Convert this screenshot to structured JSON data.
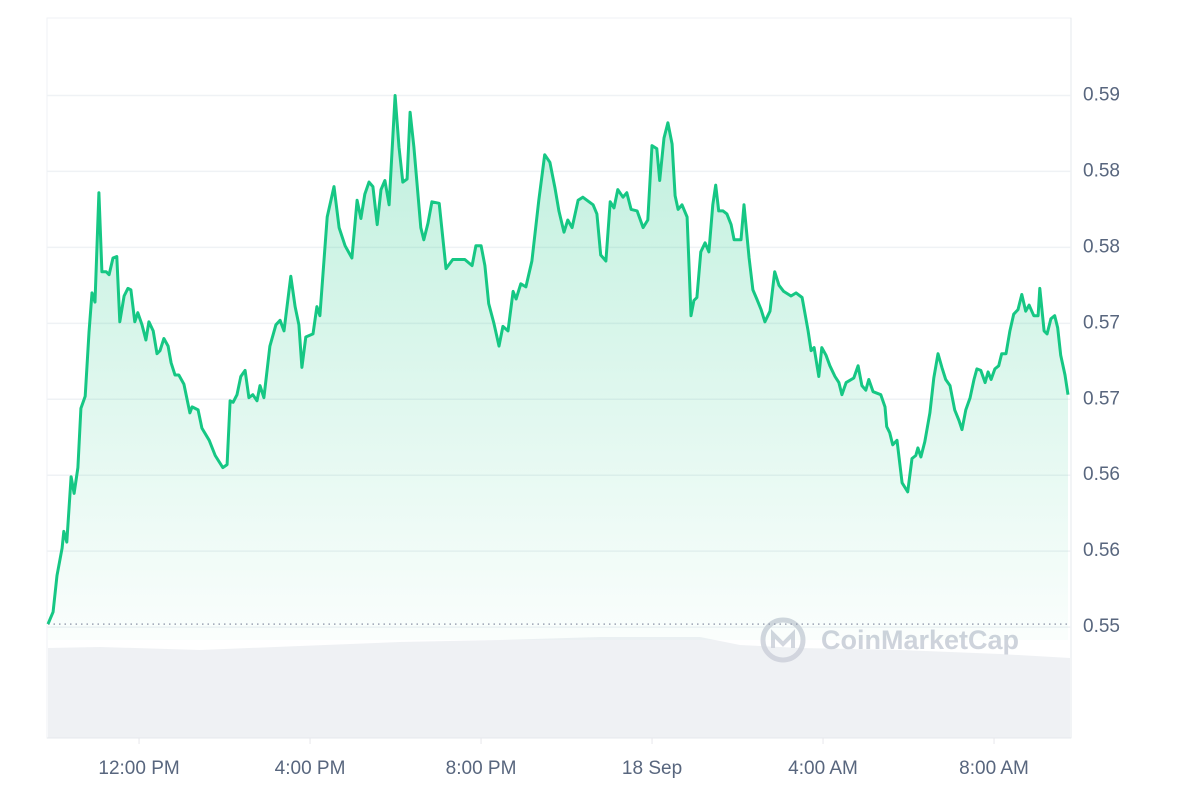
{
  "chart_data": {
    "type": "area",
    "color": "#16c784",
    "grid": true,
    "watermark": "CoinMarketCap",
    "x": [
      9.87,
      9.99,
      10.08,
      10.2,
      10.24,
      10.31,
      10.41,
      10.48,
      10.57,
      10.64,
      10.74,
      10.83,
      10.9,
      10.97,
      11.06,
      11.13,
      11.23,
      11.3,
      11.39,
      11.48,
      11.55,
      11.65,
      11.74,
      11.81,
      11.9,
      11.97,
      12.07,
      12.16,
      12.23,
      12.33,
      12.42,
      12.49,
      12.58,
      12.68,
      12.75,
      12.84,
      12.93,
      13.05,
      13.19,
      13.24,
      13.38,
      13.47,
      13.64,
      13.78,
      13.96,
      14.06,
      14.13,
      14.2,
      14.29,
      14.38,
      14.48,
      14.57,
      14.66,
      14.76,
      14.83,
      14.92,
      15.06,
      15.2,
      15.3,
      15.39,
      15.55,
      15.65,
      15.74,
      15.81,
      15.9,
      16.07,
      16.16,
      16.23,
      16.4,
      16.56,
      16.68,
      16.82,
      16.98,
      17.1,
      17.19,
      17.28,
      17.38,
      17.47,
      17.57,
      17.66,
      17.75,
      17.85,
      17.99,
      18.08,
      18.17,
      18.27,
      18.34,
      18.43,
      18.59,
      18.66,
      18.76,
      18.85,
      19.02,
      19.18,
      19.34,
      19.62,
      19.79,
      19.88,
      20.0,
      20.09,
      20.18,
      20.3,
      20.42,
      20.51,
      20.63,
      20.75,
      20.82,
      20.93,
      21.05,
      21.19,
      21.35,
      21.49,
      21.61,
      21.73,
      21.82,
      21.94,
      22.03,
      22.13,
      22.27,
      22.38,
      22.62,
      22.71,
      22.8,
      22.92,
      23.02,
      23.11,
      23.2,
      23.32,
      23.41,
      23.51,
      23.65,
      23.79,
      23.9,
      24.0,
      24.11,
      24.18,
      24.28,
      24.37,
      24.47,
      24.54,
      24.61,
      24.7,
      24.82,
      24.91,
      24.98,
      25.05,
      25.14,
      25.24,
      25.33,
      25.42,
      25.49,
      25.56,
      25.66,
      25.75,
      25.85,
      25.92,
      26.08,
      26.15,
      26.27,
      26.36,
      26.45,
      26.55,
      26.64,
      26.76,
      26.87,
      26.97,
      27.08,
      27.25,
      27.37,
      27.51,
      27.65,
      27.72,
      27.79,
      27.9,
      27.97,
      28.07,
      28.16,
      28.28,
      28.37,
      28.44,
      28.54,
      28.72,
      28.82,
      28.91,
      29.0,
      29.07,
      29.17,
      29.35,
      29.45,
      29.49,
      29.56,
      29.63,
      29.73,
      29.85,
      29.98,
      30.08,
      30.17,
      30.22,
      30.29,
      30.38,
      30.5,
      30.59,
      30.69,
      30.78,
      30.87,
      30.97,
      31.08,
      31.18,
      31.25,
      31.34,
      31.44,
      31.53,
      31.6,
      31.69,
      31.79,
      31.86,
      31.93,
      32.02,
      32.11,
      32.18,
      32.28,
      32.37,
      32.46,
      32.56,
      32.65,
      32.74,
      32.82,
      32.93,
      33.03,
      33.07,
      33.17,
      33.24,
      33.33,
      33.42,
      33.49,
      33.56,
      33.66,
      33.73
    ],
    "values": [
      0.5502,
      0.551,
      0.5534,
      0.5552,
      0.5563,
      0.5556,
      0.5599,
      0.5588,
      0.5605,
      0.5644,
      0.5652,
      0.5694,
      0.572,
      0.5714,
      0.5786,
      0.5734,
      0.5734,
      0.5732,
      0.5743,
      0.5744,
      0.5701,
      0.5718,
      0.5723,
      0.5722,
      0.5701,
      0.5707,
      0.5699,
      0.5689,
      0.5701,
      0.5695,
      0.568,
      0.5682,
      0.569,
      0.5685,
      0.5674,
      0.5666,
      0.5666,
      0.566,
      0.5641,
      0.5645,
      0.5643,
      0.5631,
      0.5623,
      0.5613,
      0.5605,
      0.5607,
      0.5649,
      0.5648,
      0.5653,
      0.5665,
      0.5669,
      0.5651,
      0.5653,
      0.5649,
      0.5659,
      0.5651,
      0.5685,
      0.5699,
      0.5702,
      0.5695,
      0.5731,
      0.5711,
      0.5699,
      0.5671,
      0.5691,
      0.5693,
      0.5711,
      0.5705,
      0.577,
      0.579,
      0.5763,
      0.5751,
      0.5743,
      0.5781,
      0.5769,
      0.5785,
      0.5793,
      0.579,
      0.5765,
      0.5788,
      0.5794,
      0.5778,
      0.585,
      0.5816,
      0.5793,
      0.5795,
      0.5839,
      0.5816,
      0.5763,
      0.5755,
      0.5766,
      0.578,
      0.5779,
      0.5736,
      0.5742,
      0.5742,
      0.5738,
      0.5751,
      0.5751,
      0.5738,
      0.5713,
      0.57,
      0.5685,
      0.5698,
      0.5695,
      0.5721,
      0.5716,
      0.5726,
      0.5724,
      0.5741,
      0.5781,
      0.5811,
      0.5806,
      0.5789,
      0.5774,
      0.576,
      0.5768,
      0.5763,
      0.5781,
      0.5783,
      0.5778,
      0.5772,
      0.5745,
      0.5741,
      0.578,
      0.5776,
      0.5788,
      0.5783,
      0.5786,
      0.5775,
      0.5774,
      0.5763,
      0.5768,
      0.5817,
      0.5815,
      0.5794,
      0.5822,
      0.5832,
      0.5818,
      0.5784,
      0.5775,
      0.5778,
      0.577,
      0.5705,
      0.5715,
      0.5717,
      0.5747,
      0.5753,
      0.5747,
      0.5778,
      0.5791,
      0.5774,
      0.5774,
      0.5772,
      0.5765,
      0.5755,
      0.5755,
      0.5778,
      0.5743,
      0.5722,
      0.5716,
      0.5709,
      0.5701,
      0.5708,
      0.5734,
      0.5725,
      0.5721,
      0.5718,
      0.572,
      0.5717,
      0.5695,
      0.5682,
      0.5684,
      0.5665,
      0.5684,
      0.5679,
      0.5672,
      0.5665,
      0.5661,
      0.5653,
      0.5661,
      0.5664,
      0.5672,
      0.5659,
      0.5656,
      0.5663,
      0.5655,
      0.5653,
      0.5645,
      0.5632,
      0.5628,
      0.562,
      0.5623,
      0.5595,
      0.5589,
      0.5611,
      0.5613,
      0.5618,
      0.5612,
      0.5622,
      0.5641,
      0.5664,
      0.568,
      0.5671,
      0.5663,
      0.5659,
      0.5643,
      0.5636,
      0.563,
      0.5643,
      0.5651,
      0.5663,
      0.567,
      0.5669,
      0.5661,
      0.5668,
      0.5663,
      0.567,
      0.5672,
      0.568,
      0.568,
      0.5695,
      0.5706,
      0.5709,
      0.5719,
      0.5708,
      0.5712,
      0.5705,
      0.5705,
      0.5723,
      0.5695,
      0.5693,
      0.5703,
      0.5705,
      0.5697,
      0.5679,
      0.5666,
      0.5653
    ],
    "xlim": [
      9.87,
      33.73
    ],
    "ylim": [
      0.5427,
      0.5901
    ],
    "xticks": [
      {
        "value": 12,
        "label": "12:00 PM"
      },
      {
        "value": 16,
        "label": "4:00 PM"
      },
      {
        "value": 20,
        "label": "8:00 PM"
      },
      {
        "value": 24,
        "label": "18 Sep"
      },
      {
        "value": 28,
        "label": "4:00 AM"
      },
      {
        "value": 32,
        "label": "8:00 AM"
      }
    ],
    "yticks": [
      0.55,
      {
        "value": 0.555,
        "label": "0.56"
      },
      0.56,
      {
        "value": 0.565,
        "label": "0.57"
      },
      0.57,
      {
        "value": 0.575,
        "label": "0.58"
      },
      0.58,
      {
        "value": 0.585,
        "label": "0.59"
      }
    ]
  }
}
